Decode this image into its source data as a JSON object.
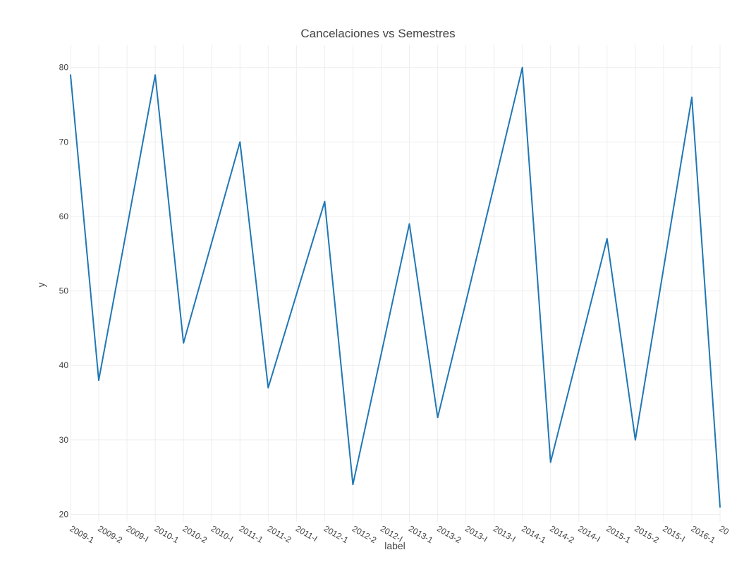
{
  "chart_data": {
    "type": "line",
    "title": "Cancelaciones vs Semestres",
    "xlabel": "label",
    "ylabel": "y",
    "categories": [
      "2009-1",
      "2009-2",
      "2009-I",
      "2010-1",
      "2010-2",
      "2010-I",
      "2011-1",
      "2011-2",
      "2011-I",
      "2012-1",
      "2012-2",
      "2012-I",
      "2013-1",
      "2013-2",
      "2013-I",
      "2013-I",
      "2014-1",
      "2014-2",
      "2014-I",
      "2015-1",
      "2015-2",
      "2015-I",
      "2016-1",
      "20"
    ],
    "series": [
      {
        "values": [
          79,
          38,
          58.5,
          79,
          43,
          56.5,
          70,
          37,
          49.5,
          62,
          24,
          41.5,
          59,
          33,
          48.5,
          64.2,
          80,
          27,
          42,
          57,
          30,
          53,
          76,
          21
        ]
      }
    ],
    "ylim": [
      19,
      83
    ],
    "yticks": [
      20,
      30,
      40,
      50,
      60,
      70,
      80
    ],
    "grid": true,
    "legend": "none",
    "line_color": "#1f77b4"
  }
}
